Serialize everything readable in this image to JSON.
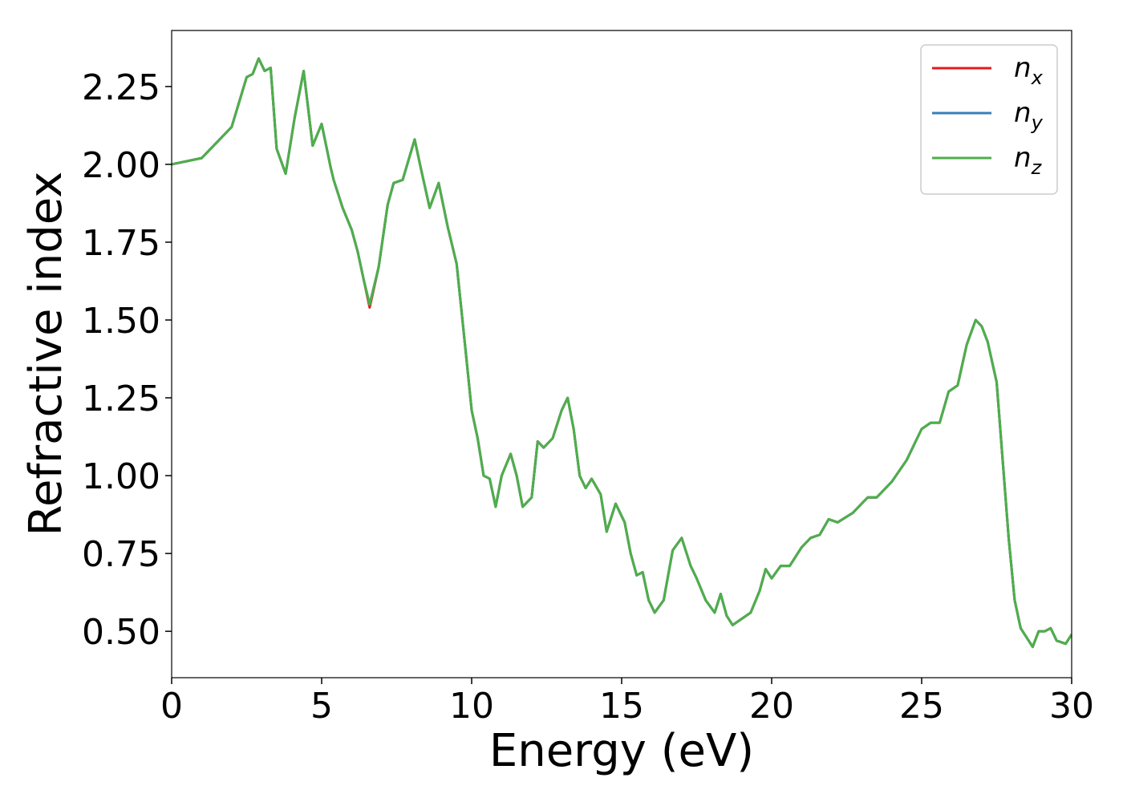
{
  "chart_data": {
    "type": "line",
    "xlabel": "Energy (eV)",
    "ylabel": "Refractive index",
    "x": [
      0,
      1,
      2,
      2.5,
      2.7,
      2.9,
      3.1,
      3.3,
      3.5,
      3.8,
      4.1,
      4.4,
      4.7,
      5.0,
      5.3,
      5.4,
      5.7,
      6.0,
      6.2,
      6.4,
      6.6,
      6.9,
      7.2,
      7.4,
      7.7,
      8.1,
      8.3,
      8.6,
      8.9,
      9.2,
      9.5,
      9.8,
      10.0,
      10.2,
      10.4,
      10.6,
      10.8,
      11.0,
      11.3,
      11.5,
      11.7,
      12.0,
      12.2,
      12.4,
      12.7,
      13.0,
      13.2,
      13.4,
      13.6,
      13.8,
      14.0,
      14.3,
      14.5,
      14.8,
      15.1,
      15.3,
      15.5,
      15.7,
      15.9,
      16.1,
      16.4,
      16.7,
      17.0,
      17.3,
      17.5,
      17.8,
      18.1,
      18.3,
      18.5,
      18.7,
      19.0,
      19.3,
      19.6,
      19.8,
      20.0,
      20.3,
      20.6,
      21.0,
      21.3,
      21.6,
      21.9,
      22.2,
      22.7,
      23.2,
      23.5,
      24.0,
      24.5,
      25.0,
      25.3,
      25.6,
      25.9,
      26.2,
      26.5,
      26.8,
      27.0,
      27.2,
      27.5,
      27.7,
      27.9,
      28.1,
      28.3,
      28.5,
      28.7,
      28.9,
      29.1,
      29.3,
      29.5,
      29.8,
      30.0
    ],
    "series": [
      {
        "name": "nx",
        "color": "#e41a1c",
        "values": [
          2.0,
          2.02,
          2.12,
          2.28,
          2.29,
          2.34,
          2.3,
          2.31,
          2.05,
          1.97,
          2.15,
          2.3,
          2.06,
          2.13,
          1.99,
          1.95,
          1.86,
          1.79,
          1.72,
          1.63,
          1.54,
          1.67,
          1.87,
          1.94,
          1.95,
          2.08,
          1.99,
          1.86,
          1.94,
          1.8,
          1.68,
          1.4,
          1.21,
          1.12,
          1.0,
          0.99,
          0.9,
          1.0,
          1.07,
          1.0,
          0.9,
          0.93,
          1.11,
          1.09,
          1.12,
          1.21,
          1.25,
          1.15,
          1.0,
          0.96,
          0.99,
          0.94,
          0.82,
          0.91,
          0.85,
          0.75,
          0.68,
          0.69,
          0.6,
          0.56,
          0.6,
          0.76,
          0.8,
          0.71,
          0.67,
          0.6,
          0.56,
          0.62,
          0.55,
          0.52,
          0.54,
          0.56,
          0.63,
          0.7,
          0.67,
          0.71,
          0.71,
          0.77,
          0.8,
          0.81,
          0.86,
          0.85,
          0.88,
          0.93,
          0.93,
          0.98,
          1.05,
          1.15,
          1.17,
          1.17,
          1.27,
          1.29,
          1.42,
          1.5,
          1.48,
          1.43,
          1.3,
          1.05,
          0.8,
          0.6,
          0.51,
          0.48,
          0.45,
          0.5,
          0.5,
          0.51,
          0.47,
          0.46,
          0.49
        ]
      },
      {
        "name": "ny",
        "color": "#377eb8",
        "values": [
          2.0,
          2.02,
          2.12,
          2.28,
          2.29,
          2.34,
          2.3,
          2.31,
          2.05,
          1.97,
          2.15,
          2.3,
          2.06,
          2.13,
          1.99,
          1.95,
          1.86,
          1.79,
          1.72,
          1.63,
          1.55,
          1.67,
          1.87,
          1.94,
          1.95,
          2.08,
          1.99,
          1.86,
          1.94,
          1.8,
          1.68,
          1.4,
          1.21,
          1.12,
          1.0,
          0.99,
          0.9,
          1.0,
          1.07,
          1.0,
          0.9,
          0.93,
          1.11,
          1.09,
          1.12,
          1.21,
          1.25,
          1.15,
          1.0,
          0.96,
          0.99,
          0.94,
          0.82,
          0.91,
          0.85,
          0.75,
          0.68,
          0.69,
          0.6,
          0.56,
          0.6,
          0.76,
          0.8,
          0.71,
          0.67,
          0.6,
          0.56,
          0.62,
          0.55,
          0.52,
          0.54,
          0.56,
          0.63,
          0.7,
          0.67,
          0.71,
          0.71,
          0.77,
          0.8,
          0.81,
          0.86,
          0.85,
          0.88,
          0.93,
          0.93,
          0.98,
          1.05,
          1.15,
          1.17,
          1.17,
          1.27,
          1.29,
          1.42,
          1.5,
          1.48,
          1.43,
          1.3,
          1.05,
          0.8,
          0.6,
          0.51,
          0.48,
          0.45,
          0.5,
          0.5,
          0.51,
          0.47,
          0.46,
          0.49
        ]
      },
      {
        "name": "nz",
        "color": "#4daf4a",
        "values": [
          2.0,
          2.02,
          2.12,
          2.28,
          2.29,
          2.34,
          2.3,
          2.31,
          2.05,
          1.97,
          2.15,
          2.3,
          2.06,
          2.13,
          1.99,
          1.95,
          1.86,
          1.79,
          1.72,
          1.63,
          1.55,
          1.67,
          1.87,
          1.94,
          1.95,
          2.08,
          1.99,
          1.86,
          1.94,
          1.8,
          1.68,
          1.4,
          1.21,
          1.12,
          1.0,
          0.99,
          0.9,
          1.0,
          1.07,
          1.0,
          0.9,
          0.93,
          1.11,
          1.09,
          1.12,
          1.21,
          1.25,
          1.15,
          1.0,
          0.96,
          0.99,
          0.94,
          0.82,
          0.91,
          0.85,
          0.75,
          0.68,
          0.69,
          0.6,
          0.56,
          0.6,
          0.76,
          0.8,
          0.71,
          0.67,
          0.6,
          0.56,
          0.62,
          0.55,
          0.52,
          0.54,
          0.56,
          0.63,
          0.7,
          0.67,
          0.71,
          0.71,
          0.77,
          0.8,
          0.81,
          0.86,
          0.85,
          0.88,
          0.93,
          0.93,
          0.98,
          1.05,
          1.15,
          1.17,
          1.17,
          1.27,
          1.29,
          1.42,
          1.5,
          1.48,
          1.43,
          1.3,
          1.05,
          0.8,
          0.6,
          0.51,
          0.48,
          0.45,
          0.5,
          0.5,
          0.51,
          0.47,
          0.46,
          0.49
        ]
      }
    ],
    "xlim": [
      0,
      30
    ],
    "ylim": [
      0.351,
      2.43
    ],
    "xticks": [
      0,
      5,
      10,
      15,
      20,
      25,
      30
    ],
    "yticks": [
      {
        "value": 0.5,
        "label": "0.50"
      },
      {
        "value": 0.75,
        "label": "0.75"
      },
      {
        "value": 1.0,
        "label": "1.00"
      },
      {
        "value": 1.25,
        "label": "1.25"
      },
      {
        "value": 1.5,
        "label": "1.50"
      },
      {
        "value": 1.75,
        "label": "1.75"
      },
      {
        "value": 2.0,
        "label": "2.00"
      },
      {
        "value": 2.25,
        "label": "2.25"
      }
    ],
    "grid": false,
    "legend": "upper right"
  }
}
